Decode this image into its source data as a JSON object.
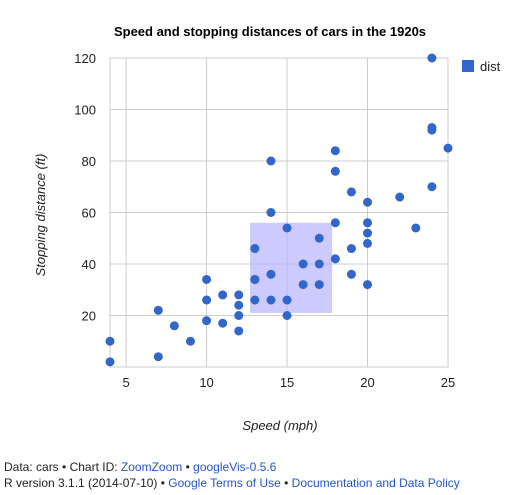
{
  "chart_data": {
    "type": "scatter",
    "title": "Speed and stopping distances of cars in the 1920s",
    "xlabel": "Speed (mph)",
    "ylabel": "Stopping distance (ft)",
    "xlim": [
      4,
      25
    ],
    "ylim": [
      0,
      120
    ],
    "xticks": [
      5,
      10,
      15,
      20,
      25
    ],
    "yticks": [
      20,
      40,
      60,
      80,
      100,
      120
    ],
    "grid": true,
    "legend": "top-right",
    "series": [
      {
        "name": "dist",
        "color": "#3366cc",
        "points": [
          [
            4,
            2
          ],
          [
            4,
            10
          ],
          [
            7,
            4
          ],
          [
            7,
            22
          ],
          [
            8,
            16
          ],
          [
            9,
            10
          ],
          [
            10,
            18
          ],
          [
            10,
            26
          ],
          [
            10,
            34
          ],
          [
            11,
            17
          ],
          [
            11,
            28
          ],
          [
            12,
            14
          ],
          [
            12,
            20
          ],
          [
            12,
            24
          ],
          [
            12,
            28
          ],
          [
            13,
            26
          ],
          [
            13,
            34
          ],
          [
            13,
            34
          ],
          [
            13,
            46
          ],
          [
            14,
            26
          ],
          [
            14,
            36
          ],
          [
            14,
            60
          ],
          [
            14,
            80
          ],
          [
            15,
            20
          ],
          [
            15,
            26
          ],
          [
            15,
            54
          ],
          [
            16,
            32
          ],
          [
            16,
            40
          ],
          [
            17,
            32
          ],
          [
            17,
            40
          ],
          [
            17,
            50
          ],
          [
            18,
            42
          ],
          [
            18,
            56
          ],
          [
            18,
            76
          ],
          [
            18,
            84
          ],
          [
            19,
            36
          ],
          [
            19,
            46
          ],
          [
            19,
            68
          ],
          [
            20,
            32
          ],
          [
            20,
            48
          ],
          [
            20,
            52
          ],
          [
            20,
            56
          ],
          [
            20,
            64
          ],
          [
            22,
            66
          ],
          [
            23,
            54
          ],
          [
            24,
            70
          ],
          [
            24,
            92
          ],
          [
            24,
            93
          ],
          [
            24,
            120
          ],
          [
            25,
            85
          ]
        ]
      }
    ],
    "selection_box": {
      "x": [
        12.7,
        17.8
      ],
      "y": [
        21,
        56
      ]
    }
  },
  "footer": {
    "data_label": "Data: cars",
    "sep": " • ",
    "chart_id_label": "Chart ID: ",
    "chart_id_link": "ZoomZoom",
    "version_link": "googleVis-0.5.6",
    "r_version": "R version 3.1.1 (2014-07-10)",
    "terms_link": "Google Terms of Use",
    "policy_link": "Documentation and Data Policy"
  }
}
